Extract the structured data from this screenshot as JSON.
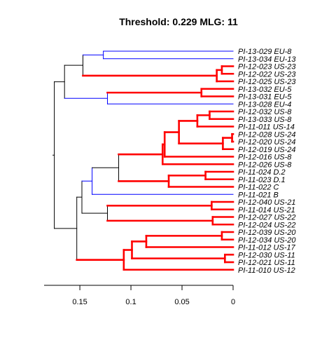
{
  "chart_data": {
    "type": "dendrogram",
    "title": "Threshold: 0.229 MLG: 11",
    "x_axis": {
      "reversed": true,
      "limits": [
        0.185,
        0
      ],
      "ticks": [
        0.15,
        0.1,
        0.05,
        0
      ],
      "tick_labels": [
        "0.15",
        "0.1",
        "0.05",
        "0"
      ]
    },
    "colors": {
      "black": "#000000",
      "blue": "#0000ff",
      "red": "#ff0000"
    },
    "leaves": [
      "PI-13-029 EU-8",
      "PI-13-034 EU-13",
      "PI-12-023 US-23",
      "PI-12-022 US-23",
      "PI-12-025 US-23",
      "PI-13-032 EU-5",
      "PI-13-031 EU-5",
      "PI-13-028 EU-4",
      "PI-12-032 US-8",
      "PI-13-033 US-8",
      "PI-11-011 US-14",
      "PI-12-028 US-24",
      "PI-12-020 US-24",
      "PI-12-019 US-24",
      "PI-12-016 US-8",
      "PI-12-026 US-8",
      "PI-11-024 D.2",
      "PI-11-023 D.1",
      "PI-11-022 C",
      "PI-11-021 B",
      "PI-12-040 US-21",
      "PI-11-014 US-21",
      "PI-12-027 US-22",
      "PI-12-024 US-22",
      "PI-12-039 US-20",
      "PI-12-034 US-20",
      "PI-11-012 US-17",
      "PI-12-030 US-11",
      "PI-12-021 US-11",
      "PI-11-010 US-12"
    ],
    "tree": {
      "h": 0.175,
      "color": "black",
      "children": [
        {
          "h": 0.165,
          "color": "black",
          "children": [
            {
              "h": 0.147,
              "color": "black",
              "children": [
                {
                  "h": 0.127,
                  "color": "blue",
                  "children": [
                    {
                      "leaf": 0,
                      "color": "blue"
                    },
                    {
                      "leaf": 1,
                      "color": "blue"
                    }
                  ]
                },
                {
                  "h": 0.016,
                  "color": "red",
                  "children": [
                    {
                      "h": 0.011,
                      "color": "red",
                      "children": [
                        {
                          "leaf": 2,
                          "color": "red"
                        },
                        {
                          "leaf": 3,
                          "color": "red"
                        }
                      ]
                    },
                    {
                      "leaf": 4,
                      "color": "red"
                    }
                  ]
                }
              ]
            },
            {
              "h": 0.123,
              "color": "blue",
              "children": [
                {
                  "h": 0.031,
                  "color": "red",
                  "children": [
                    {
                      "leaf": 5,
                      "color": "red"
                    },
                    {
                      "leaf": 6,
                      "color": "red"
                    }
                  ]
                },
                {
                  "leaf": 7,
                  "color": "blue"
                }
              ]
            }
          ]
        },
        {
          "h": 0.153,
          "color": "black",
          "children": [
            {
              "h": 0.148,
              "color": "black",
              "children": [
                {
                  "h": 0.138,
                  "color": "blue",
                  "children": [
                    {
                      "h": 0.112,
                      "color": "black",
                      "children": [
                        {
                          "h": 0.069,
                          "color": "red",
                          "children": [
                            {
                              "h": 0.067,
                              "color": "red",
                              "children": [
                                {
                                  "h": 0.053,
                                  "color": "red",
                                  "children": [
                                    {
                                      "h": 0.035,
                                      "color": "red",
                                      "children": [
                                        {
                                          "h": 0.023,
                                          "color": "red",
                                          "children": [
                                            {
                                              "leaf": 8,
                                              "color": "red"
                                            },
                                            {
                                              "leaf": 9,
                                              "color": "red"
                                            }
                                          ]
                                        },
                                        {
                                          "leaf": 10,
                                          "color": "red"
                                        }
                                      ]
                                    },
                                    {
                                      "h": 0.01,
                                      "color": "red",
                                      "children": [
                                        {
                                          "h": 0.001,
                                          "color": "red",
                                          "children": [
                                            {
                                              "leaf": 11,
                                              "color": "red"
                                            },
                                            {
                                              "leaf": 12,
                                              "color": "red"
                                            }
                                          ]
                                        },
                                        {
                                          "leaf": 13,
                                          "color": "red"
                                        }
                                      ]
                                    }
                                  ]
                                },
                                {
                                  "leaf": 14,
                                  "color": "red"
                                }
                              ]
                            },
                            {
                              "leaf": 15,
                              "color": "red"
                            }
                          ]
                        },
                        {
                          "h": 0.063,
                          "color": "red",
                          "children": [
                            {
                              "h": 0.027,
                              "color": "red",
                              "children": [
                                {
                                  "leaf": 16,
                                  "color": "red"
                                },
                                {
                                  "leaf": 17,
                                  "color": "red"
                                }
                              ]
                            },
                            {
                              "leaf": 18,
                              "color": "red"
                            }
                          ]
                        }
                      ]
                    },
                    {
                      "leaf": 19,
                      "color": "blue"
                    }
                  ]
                },
                {
                  "h": 0.123,
                  "color": "black",
                  "children": [
                    {
                      "h": 0.021,
                      "color": "red",
                      "children": [
                        {
                          "leaf": 20,
                          "color": "red"
                        },
                        {
                          "leaf": 21,
                          "color": "red"
                        }
                      ]
                    },
                    {
                      "h": 0.02,
                      "color": "red",
                      "children": [
                        {
                          "leaf": 22,
                          "color": "red"
                        },
                        {
                          "leaf": 23,
                          "color": "red"
                        }
                      ]
                    }
                  ]
                }
              ]
            },
            {
              "h": 0.107,
              "color": "red",
              "children": [
                {
                  "h": 0.099,
                  "color": "red",
                  "children": [
                    {
                      "h": 0.085,
                      "color": "red",
                      "children": [
                        {
                          "h": 0.011,
                          "color": "red",
                          "children": [
                            {
                              "leaf": 24,
                              "color": "red"
                            },
                            {
                              "leaf": 25,
                              "color": "red"
                            }
                          ]
                        },
                        {
                          "leaf": 26,
                          "color": "red"
                        }
                      ]
                    },
                    {
                      "h": 0.008,
                      "color": "red",
                      "children": [
                        {
                          "leaf": 27,
                          "color": "red"
                        },
                        {
                          "leaf": 28,
                          "color": "red"
                        }
                      ]
                    }
                  ]
                },
                {
                  "leaf": 29,
                  "color": "red"
                }
              ]
            }
          ]
        }
      ]
    }
  }
}
